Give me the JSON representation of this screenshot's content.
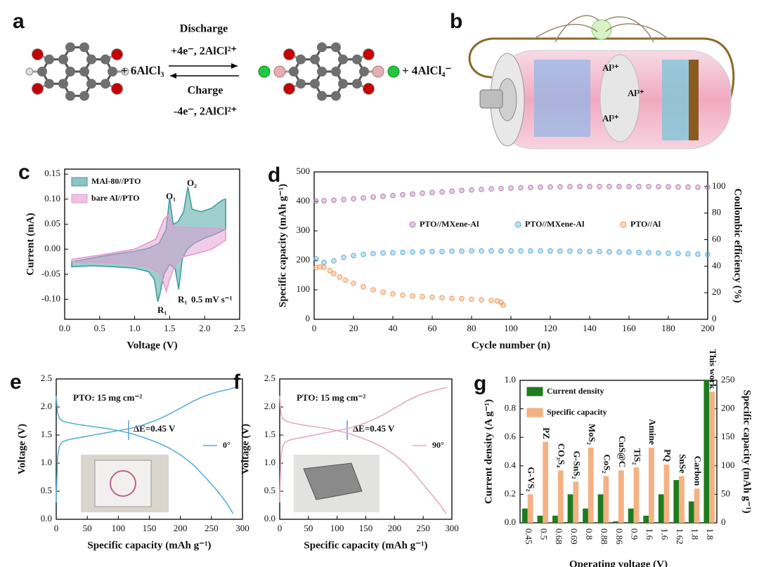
{
  "scheme": {
    "label": "a",
    "reactant": "+ 6AlCl₃",
    "forward": "Discharge",
    "forward_detail": "+4e⁻, 2AlCl²⁺",
    "backward": "Charge",
    "backward_detail": "-4e⁻, 2AlCl²⁺",
    "product": "+ 4AlCl₄⁻"
  },
  "illustration": {
    "label": "b",
    "ions": [
      "Al³⁺",
      "Al³⁺",
      "Al³⁺"
    ]
  },
  "chart_data": [
    {
      "label": "c",
      "type": "line",
      "fill": true,
      "xlabel": "Voltage (V)",
      "ylabel": "Current (mA)",
      "xlim": [
        0,
        2.5
      ],
      "xticks": [
        {
          "value": 0,
          "label": "0.0"
        },
        0.5,
        {
          "value": 1,
          "label": "1.0"
        },
        1.5,
        {
          "value": 2,
          "label": "2.0"
        },
        2.5
      ],
      "ylim": [
        -0.14,
        0.16
      ],
      "yticks": [
        {
          "value": -0.1,
          "label": "-0.10"
        },
        -0.05,
        {
          "value": 0,
          "label": "0.00"
        },
        0.05,
        {
          "value": 0.1,
          "label": "0.10"
        },
        0.15
      ],
      "legend": "upper left",
      "annotations": [
        "O₁",
        "O₂",
        "R₁",
        "R₁",
        "0.5 mV s⁻¹"
      ],
      "series": [
        {
          "name": "MAl-80//PTO",
          "color": "#3f9e9e",
          "x": [
            0.1,
            0.3,
            0.5,
            0.8,
            1.0,
            1.2,
            1.35,
            1.45,
            1.5,
            1.55,
            1.62,
            1.7,
            1.76,
            1.82,
            1.95,
            2.1,
            2.25,
            2.3,
            2.3,
            2.15,
            2.0,
            1.85,
            1.75,
            1.68,
            1.63,
            1.58,
            1.5,
            1.42,
            1.36,
            1.33,
            1.28,
            1.2,
            1.0,
            0.7,
            0.4,
            0.1
          ],
          "values": [
            -0.025,
            -0.02,
            -0.015,
            -0.008,
            -0.004,
            0.002,
            0.012,
            0.04,
            0.103,
            0.05,
            0.055,
            0.075,
            0.125,
            0.08,
            0.075,
            0.082,
            0.098,
            0.1,
            0.04,
            0.03,
            0.022,
            0.012,
            0.0,
            -0.02,
            -0.08,
            -0.04,
            -0.03,
            -0.05,
            -0.09,
            -0.105,
            -0.06,
            -0.045,
            -0.038,
            -0.035,
            -0.033,
            -0.035
          ]
        },
        {
          "name": "bare Al//PTO",
          "color": "#e39ad2",
          "x": [
            0.1,
            0.5,
            1.0,
            1.3,
            1.42,
            1.48,
            1.55,
            1.7,
            1.9,
            2.1,
            2.3,
            2.3,
            2.1,
            1.9,
            1.7,
            1.58,
            1.5,
            1.45,
            1.38,
            1.2,
            0.8,
            0.4,
            0.1
          ],
          "values": [
            -0.02,
            -0.012,
            0.0,
            0.02,
            0.06,
            0.068,
            0.045,
            0.044,
            0.043,
            0.042,
            0.04,
            0.018,
            0.0,
            -0.008,
            -0.015,
            -0.03,
            -0.06,
            -0.085,
            -0.05,
            -0.035,
            -0.028,
            -0.025,
            -0.025
          ]
        }
      ]
    },
    {
      "label": "d",
      "type": "scatter",
      "xlabel": "Cycle number (n)",
      "ylabel": "Specific capacity (mAh g⁻¹)",
      "y2label": "Coulombic efficiency (%)",
      "xlim": [
        0,
        200
      ],
      "xticks": [
        0,
        20,
        40,
        60,
        80,
        100,
        120,
        140,
        160,
        180,
        200
      ],
      "ylim": [
        0,
        500
      ],
      "yticks": [
        0,
        100,
        200,
        300,
        400,
        500
      ],
      "y2lim": [
        0,
        111
      ],
      "y2ticks": [
        0,
        20,
        40,
        60,
        80,
        100
      ],
      "legend": "center",
      "series": [
        {
          "name": "PTO//MXene-Al",
          "color": "#b07aae",
          "axis": "y2",
          "x": [
            1,
            5,
            10,
            15,
            20,
            25,
            30,
            35,
            40,
            45,
            50,
            55,
            60,
            65,
            70,
            75,
            80,
            85,
            90,
            95,
            100,
            105,
            110,
            115,
            120,
            125,
            130,
            135,
            140,
            145,
            150,
            155,
            160,
            165,
            170,
            175,
            180,
            185,
            190,
            195,
            200
          ],
          "values": [
            89,
            89.3,
            89.7,
            90.2,
            90.8,
            91.4,
            92,
            92.6,
            93.2,
            93.8,
            94.4,
            95,
            95.5,
            96,
            96.5,
            97,
            97.4,
            97.8,
            98.2,
            98.5,
            98.8,
            99.1,
            99.3,
            99.5,
            99.7,
            99.8,
            99.9,
            100,
            100,
            100,
            100,
            100,
            100,
            100,
            100,
            99.9,
            99.8,
            99.7,
            99.6,
            99.5,
            99.4
          ]
        },
        {
          "name": "PTO//MXene-Al",
          "color": "#5aaedb",
          "x": [
            1,
            5,
            10,
            15,
            20,
            25,
            30,
            35,
            40,
            45,
            50,
            55,
            60,
            65,
            70,
            75,
            80,
            85,
            90,
            95,
            100,
            105,
            110,
            115,
            120,
            125,
            130,
            135,
            140,
            145,
            150,
            155,
            160,
            165,
            170,
            175,
            180,
            185,
            190,
            195,
            200
          ],
          "values": [
            205,
            193,
            198,
            210,
            216,
            220,
            223,
            225,
            226,
            227,
            228,
            229,
            230,
            230,
            231,
            231,
            232,
            232,
            232,
            232,
            232,
            232,
            232,
            232,
            232,
            231,
            231,
            231,
            230,
            230,
            229,
            228,
            228,
            227,
            226,
            225,
            224,
            223,
            222,
            221,
            220
          ]
        },
        {
          "name": "PTO//Al",
          "color": "#f09a5c",
          "x": [
            1,
            3,
            5,
            8,
            10,
            13,
            16,
            20,
            25,
            30,
            35,
            40,
            45,
            50,
            55,
            60,
            65,
            70,
            75,
            80,
            85,
            90,
            93,
            95,
            96
          ],
          "values": [
            175,
            178,
            176,
            165,
            155,
            143,
            133,
            122,
            110,
            100,
            92,
            86,
            82,
            79,
            77,
            75,
            73,
            71,
            70,
            68,
            66,
            64,
            62,
            58,
            48
          ]
        }
      ]
    },
    {
      "label": "e",
      "type": "line",
      "xlabel": "Specific capacity (mAh g⁻¹)",
      "ylabel": "Voltage (V)",
      "xlim": [
        0,
        300
      ],
      "xticks": [
        0,
        50,
        100,
        150,
        200,
        250,
        300
      ],
      "ylim": [
        0,
        2.5
      ],
      "yticks": [
        {
          "value": 0,
          "label": "0.0"
        },
        0.5,
        {
          "value": 1,
          "label": "1.0"
        },
        1.5,
        {
          "value": 2,
          "label": "2.0"
        },
        2.5
      ],
      "legend": "center right",
      "annotations": [
        "PTO: 15 mg cm⁻²",
        "ΔE=0.45 V"
      ],
      "series": [
        {
          "name": "0°",
          "color": "#5aaed6",
          "x": [
            0,
            2,
            5,
            10,
            20,
            40,
            60,
            80,
            100,
            120,
            140,
            160,
            180,
            200,
            220,
            240,
            260,
            280,
            288,
            null,
            0,
            2,
            5,
            10,
            20,
            40,
            60,
            80,
            100,
            120,
            140,
            160,
            180,
            200,
            220,
            240,
            260,
            275,
            285
          ],
          "values": [
            0.3,
            1.1,
            1.3,
            1.38,
            1.42,
            1.46,
            1.5,
            1.54,
            1.58,
            1.62,
            1.68,
            1.76,
            1.86,
            1.98,
            2.1,
            2.2,
            2.27,
            2.32,
            2.35,
            null,
            2.2,
            1.9,
            1.8,
            1.75,
            1.72,
            1.68,
            1.65,
            1.62,
            1.58,
            1.53,
            1.46,
            1.38,
            1.28,
            1.15,
            0.98,
            0.75,
            0.5,
            0.28,
            0.1
          ]
        }
      ]
    },
    {
      "label": "f",
      "type": "line",
      "xlabel": "Specific capacity (mAh g⁻¹)",
      "ylabel": "Voltage (V)",
      "xlim": [
        0,
        300
      ],
      "xticks": [
        0,
        50,
        100,
        150,
        200,
        250,
        300
      ],
      "ylim": [
        0,
        2.5
      ],
      "yticks": [
        {
          "value": 0,
          "label": "0.0"
        },
        0.5,
        {
          "value": 1,
          "label": "1.0"
        },
        1.5,
        {
          "value": 2,
          "label": "2.0"
        },
        2.5
      ],
      "legend": "center right",
      "annotations": [
        "PTO: 15 mg cm⁻²",
        "ΔE=0.45 V"
      ],
      "series": [
        {
          "name": "90°",
          "color": "#e2a9c6",
          "x": [
            0,
            2,
            5,
            10,
            20,
            40,
            60,
            80,
            100,
            120,
            140,
            160,
            180,
            200,
            220,
            240,
            260,
            280,
            292,
            null,
            0,
            2,
            5,
            10,
            20,
            40,
            60,
            80,
            100,
            120,
            140,
            160,
            180,
            200,
            220,
            240,
            260,
            278,
            290
          ],
          "values": [
            0.3,
            1.1,
            1.3,
            1.38,
            1.42,
            1.46,
            1.5,
            1.54,
            1.58,
            1.62,
            1.68,
            1.76,
            1.86,
            1.98,
            2.1,
            2.2,
            2.27,
            2.32,
            2.35,
            null,
            2.2,
            1.9,
            1.8,
            1.75,
            1.72,
            1.68,
            1.65,
            1.62,
            1.58,
            1.53,
            1.46,
            1.38,
            1.28,
            1.15,
            0.98,
            0.75,
            0.5,
            0.28,
            0.1
          ]
        }
      ]
    },
    {
      "label": "g",
      "type": "bar",
      "xlabel": "Operating voltage (V)",
      "ylabel": "Current density (A g⁻¹)",
      "y2label": "Specific capacity (mAh g⁻¹)",
      "categories": [
        "0.45",
        "0.5",
        "0.68",
        "0.69",
        "0.8",
        "0.88",
        "0.86",
        "0.9",
        "1.6",
        "1.6",
        "1.62",
        "1.8",
        "1.8"
      ],
      "bar_labels": [
        "G-VS₂",
        "PZ",
        "CO₃S₄",
        "G-SnS₂",
        "MoS₂",
        "CoS₂",
        "CuS@C",
        "TiS₂",
        "Amine",
        "PQ",
        "SnSe",
        "Carbon",
        "This work"
      ],
      "ylim": [
        0,
        1.0
      ],
      "yticks": [
        {
          "value": 0,
          "label": "0.0"
        },
        0.2,
        0.4,
        0.6,
        0.8,
        {
          "value": 1,
          "label": "1.0"
        }
      ],
      "y2lim": [
        0,
        250
      ],
      "y2ticks": [
        0,
        50,
        100,
        150,
        200,
        250
      ],
      "legend": "upper left",
      "series": [
        {
          "name": "Current density",
          "color": "#1e7b1e",
          "values": [
            0.1,
            0.05,
            0.05,
            0.2,
            0.1,
            0.2,
            0.01,
            0.1,
            0.05,
            0.2,
            0.3,
            0.15,
            1.0
          ]
        },
        {
          "name": "Specific capacity",
          "color": "#f4b183",
          "axis": "y2",
          "values": [
            50,
            142,
            92,
            72,
            132,
            82,
            92,
            97,
            132,
            102,
            82,
            60,
            230
          ]
        }
      ]
    }
  ]
}
